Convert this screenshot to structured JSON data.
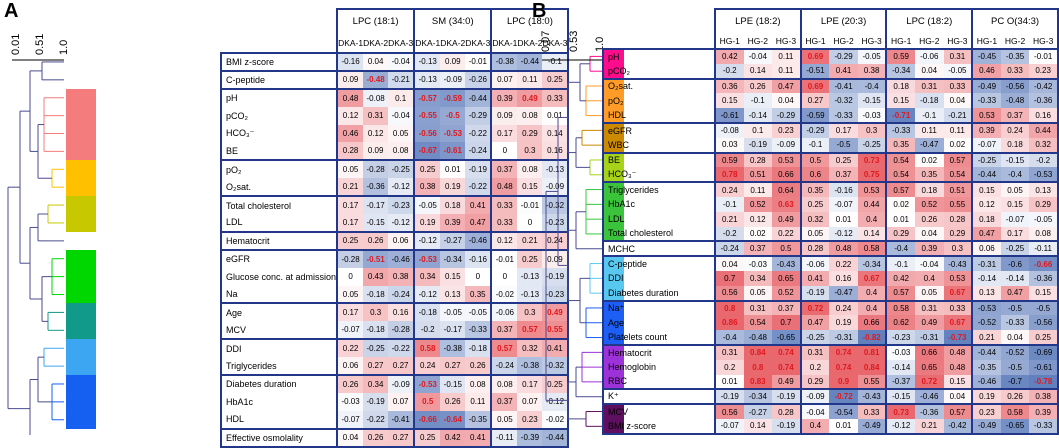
{
  "panelA": {
    "letter": "A",
    "scale_ticks": [
      "0.01",
      "0.51",
      "1.0"
    ],
    "columns": [
      "LPC (18:1)",
      "SM (34:0)",
      "LPC (18:0)"
    ],
    "subcolumns": [
      "DKA-1",
      "DKA-2",
      "DKA-3",
      "DKA-1",
      "DKA-2",
      "DKA-3",
      "DKA-1",
      "DKA-2",
      "DKA-3"
    ],
    "groups": [
      {
        "color": "#ffffff",
        "rows": [
          {
            "name": "BMI z-score",
            "values": [
              -0.16,
              0.04,
              -0.04,
              -0.13,
              0.09,
              -0.01,
              -0.38,
              -0.44,
              -0.1
            ]
          }
        ]
      },
      {
        "color": "#ffffff",
        "rows": [
          {
            "name": "C-peptide",
            "values": [
              0.09,
              -0.48,
              -0.21,
              -0.13,
              -0.09,
              -0.26,
              0.07,
              0.11,
              0.25
            ]
          }
        ]
      },
      {
        "color": "#f47c7c",
        "rows": [
          {
            "name": "pH",
            "values": [
              0.48,
              -0.08,
              0.1,
              -0.57,
              -0.59,
              -0.44,
              0.39,
              0.49,
              0.33
            ]
          },
          {
            "name": "pCO₂",
            "values": [
              0.12,
              0.31,
              -0.04,
              -0.55,
              -0.5,
              -0.29,
              0.09,
              0.08,
              0.01
            ]
          },
          {
            "name": "HCO₃⁻",
            "values": [
              0.46,
              0.12,
              0.05,
              -0.56,
              -0.53,
              -0.22,
              0.17,
              0.29,
              0.14
            ]
          },
          {
            "name": "BE",
            "values": [
              0.28,
              0.09,
              0.08,
              -0.67,
              -0.61,
              -0.24,
              0,
              0.3,
              0.16
            ]
          }
        ]
      },
      {
        "color": "#ffc000",
        "rows": [
          {
            "name": "pO₂",
            "values": [
              0.05,
              -0.28,
              -0.25,
              0.25,
              0.01,
              -0.19,
              0.37,
              0.08,
              -0.13
            ]
          },
          {
            "name": "O₂sat.",
            "values": [
              0.21,
              -0.36,
              -0.12,
              0.38,
              0.19,
              -0.22,
              0.48,
              0.15,
              -0.09
            ]
          }
        ]
      },
      {
        "color": "#c8c800",
        "rows": [
          {
            "name": "Total cholesterol",
            "values": [
              0.17,
              -0.17,
              -0.23,
              -0.05,
              0.18,
              0.41,
              0.33,
              -0.01,
              -0.32
            ]
          },
          {
            "name": "LDL",
            "values": [
              0.17,
              -0.15,
              -0.12,
              0.19,
              0.39,
              0.47,
              0.33,
              0,
              -0.23
            ]
          }
        ]
      },
      {
        "color": "#ffffff",
        "rows": [
          {
            "name": "Hematocrit",
            "values": [
              0.25,
              0.26,
              0.06,
              -0.12,
              -0.27,
              -0.46,
              0.12,
              0.21,
              0.24
            ]
          }
        ]
      },
      {
        "color": "#00d700",
        "rows": [
          {
            "name": "eGFR",
            "values": [
              -0.28,
              -0.51,
              -0.46,
              -0.53,
              -0.34,
              -0.16,
              -0.01,
              0.25,
              0.09
            ]
          },
          {
            "name": "Glucose conc. at admission",
            "values": [
              0,
              0.43,
              0.38,
              0.34,
              0.15,
              0,
              0,
              -0.13,
              -0.19
            ]
          },
          {
            "name": "Na",
            "values": [
              0.05,
              -0.18,
              -0.24,
              -0.12,
              0.13,
              0.35,
              -0.02,
              -0.13,
              -0.23
            ]
          }
        ]
      },
      {
        "color": "#119a8a",
        "rows": [
          {
            "name": "Age",
            "values": [
              0.17,
              0.3,
              0.16,
              -0.18,
              -0.05,
              -0.05,
              -0.06,
              0.3,
              0.49
            ]
          },
          {
            "name": "MCV",
            "values": [
              -0.07,
              -0.18,
              -0.28,
              -0.2,
              -0.17,
              -0.33,
              0.37,
              0.57,
              0.55
            ]
          }
        ]
      },
      {
        "color": "#3da6f2",
        "rows": [
          {
            "name": "DDI",
            "values": [
              0.22,
              -0.25,
              -0.22,
              0.58,
              -0.38,
              -0.18,
              0.57,
              0.32,
              0.41
            ]
          },
          {
            "name": "Triglycerides",
            "values": [
              0.06,
              0.27,
              0.27,
              0.24,
              0.27,
              0.26,
              -0.24,
              -0.38,
              -0.32
            ]
          }
        ]
      },
      {
        "color": "#1560f0",
        "rows": [
          {
            "name": "Diabetes duration",
            "values": [
              0.26,
              0.34,
              -0.09,
              -0.53,
              -0.15,
              0.08,
              0.08,
              0.17,
              0.25
            ]
          },
          {
            "name": "HbA1c",
            "values": [
              -0.03,
              -0.19,
              0.07,
              0.5,
              0.26,
              0.11,
              0.37,
              0.07,
              -0.12
            ]
          },
          {
            "name": "HDL",
            "values": [
              -0.07,
              -0.22,
              -0.41,
              -0.66,
              -0.64,
              -0.35,
              0.05,
              0.23,
              -0.02
            ]
          }
        ]
      },
      {
        "color": "#ffffff",
        "rows": [
          {
            "name": "Effective osmolality",
            "values": [
              0.04,
              0.26,
              0.27,
              0.25,
              0.42,
              0.41,
              -0.11,
              -0.39,
              -0.44
            ]
          }
        ]
      }
    ],
    "highlight": [
      "-0.48",
      "-0.57",
      "-0.59",
      "-0.55",
      "-0.5",
      "-0.56",
      "-0.53",
      "-0.67",
      "-0.61",
      "0.49",
      "-0.51",
      "0.49",
      "0.57",
      "0.55",
      "0.58",
      "0.57",
      "-0.53",
      "0.5",
      "-0.66",
      "-0.64"
    ]
  },
  "panelB": {
    "letter": "B",
    "scale_ticks": [
      "0.07",
      "0.53",
      "1.0"
    ],
    "columns": [
      "LPE (18:2)",
      "LPE (20:3)",
      "LPC (18:2)",
      "PC O(34:3)"
    ],
    "subcolumns": [
      "HG-1",
      "HG-2",
      "HG-3",
      "HG-1",
      "HG-2",
      "HG-3",
      "HG-1",
      "HG-2",
      "HG-3",
      "HG-1",
      "HG-2",
      "HG-3"
    ],
    "groups": [
      {
        "color": "#ff0c8c",
        "rows": [
          {
            "name": "pH",
            "values": [
              0.42,
              -0.04,
              0.11,
              0.69,
              -0.29,
              -0.05,
              0.59,
              -0.06,
              0.31,
              -0.45,
              -0.35,
              -0.01
            ]
          },
          {
            "name": "pCO₂",
            "values": [
              -0.2,
              0.14,
              0.11,
              -0.51,
              0.41,
              0.38,
              -0.34,
              0.04,
              -0.05,
              0.46,
              0.33,
              0.23
            ]
          }
        ]
      },
      {
        "color": "#ff9c28",
        "rows": [
          {
            "name": "O₂sat.",
            "values": [
              0.36,
              0.26,
              0.47,
              0.69,
              -0.41,
              -0.4,
              0.18,
              0.31,
              0.33,
              -0.49,
              -0.56,
              -0.42
            ]
          },
          {
            "name": "pO₂",
            "values": [
              0.15,
              -0.1,
              0.04,
              0.27,
              -0.32,
              -0.15,
              0.15,
              -0.18,
              0.04,
              -0.33,
              -0.48,
              -0.36
            ]
          },
          {
            "name": "HDL",
            "values": [
              -0.61,
              -0.14,
              -0.29,
              -0.59,
              -0.33,
              -0.03,
              -0.71,
              -0.1,
              -0.21,
              0.53,
              0.37,
              0.16
            ]
          }
        ]
      },
      {
        "color": "#cc8a00",
        "rows": [
          {
            "name": "eGFR",
            "values": [
              -0.08,
              0.1,
              0.23,
              -0.29,
              0.17,
              0.3,
              -0.33,
              0.11,
              0.11,
              0.39,
              0.24,
              0.44
            ]
          },
          {
            "name": "WBC",
            "values": [
              0.03,
              -0.19,
              -0.09,
              -0.1,
              -0.5,
              -0.25,
              0.35,
              -0.47,
              0.02,
              -0.07,
              0.18,
              0.32
            ]
          }
        ]
      },
      {
        "color": "#a6d21a",
        "rows": [
          {
            "name": "BE",
            "values": [
              0.59,
              0.28,
              0.53,
              0.5,
              0.25,
              0.73,
              0.54,
              0.02,
              0.57,
              -0.25,
              -0.15,
              -0.2
            ]
          },
          {
            "name": "HCO₃⁻",
            "values": [
              0.78,
              0.51,
              0.66,
              0.6,
              0.37,
              0.75,
              0.54,
              0.35,
              0.54,
              -0.44,
              -0.4,
              -0.53
            ]
          }
        ]
      },
      {
        "color": "#3bc43b",
        "rows": [
          {
            "name": "Triglycerides",
            "values": [
              0.24,
              0.11,
              0.64,
              0.35,
              -0.16,
              0.53,
              0.57,
              0.18,
              0.51,
              0.15,
              0.05,
              0.13
            ]
          },
          {
            "name": "HbA1c",
            "values": [
              -0.1,
              0.52,
              0.63,
              0.25,
              -0.07,
              0.44,
              0.02,
              0.52,
              0.55,
              0.12,
              0.15,
              0.29
            ]
          },
          {
            "name": "LDL",
            "values": [
              0.21,
              0.12,
              0.49,
              0.32,
              0.01,
              0.4,
              0.01,
              0.26,
              0.28,
              0.18,
              -0.07,
              -0.05
            ]
          },
          {
            "name": "Total cholesterol",
            "values": [
              -0.2,
              0.02,
              0.22,
              0.05,
              -0.12,
              0.14,
              0.29,
              0.04,
              0.29,
              0.47,
              0.17,
              0.08
            ]
          }
        ]
      },
      {
        "color": "#ffffff",
        "rows": [
          {
            "name": "MCHC",
            "values": [
              -0.24,
              0.37,
              0.5,
              0.28,
              0.48,
              0.58,
              -0.4,
              0.39,
              0.3,
              0.06,
              -0.25,
              -0.11
            ]
          }
        ]
      },
      {
        "color": "#59c8f0",
        "rows": [
          {
            "name": "C-peptide",
            "values": [
              0.04,
              -0.03,
              -0.43,
              -0.06,
              0.22,
              -0.34,
              -0.1,
              -0.04,
              -0.43,
              -0.31,
              -0.6,
              -0.66
            ]
          },
          {
            "name": "DDI",
            "values": [
              0.7,
              0.34,
              0.65,
              0.41,
              0.16,
              0.67,
              0.42,
              0.4,
              0.53,
              -0.14,
              -0.14,
              -0.36
            ]
          },
          {
            "name": "Diabetes duration",
            "values": [
              0.56,
              0.05,
              0.52,
              -0.19,
              -0.47,
              0.4,
              0.57,
              0.05,
              0.67,
              0.13,
              0.47,
              0.15
            ]
          }
        ]
      },
      {
        "color": "#1d5ef5",
        "rows": [
          {
            "name": "Na⁺",
            "values": [
              0.8,
              0.31,
              0.37,
              0.72,
              0.24,
              0.4,
              0.58,
              0.31,
              0.33,
              -0.53,
              -0.5,
              -0.5
            ]
          },
          {
            "name": "Age",
            "values": [
              0.86,
              0.54,
              0.7,
              0.47,
              0.19,
              0.66,
              0.62,
              0.49,
              0.67,
              -0.52,
              -0.33,
              -0.56
            ]
          },
          {
            "name": "Platelets count",
            "values": [
              -0.4,
              -0.48,
              -0.65,
              -0.25,
              -0.31,
              -0.82,
              -0.23,
              -0.31,
              -0.73,
              0.21,
              0.04,
              0.25
            ]
          }
        ]
      },
      {
        "color": "#9d32d8",
        "rows": [
          {
            "name": "Hematocrit",
            "values": [
              0.31,
              0.84,
              0.74,
              0.31,
              0.74,
              0.81,
              -0.03,
              0.66,
              0.48,
              -0.44,
              -0.52,
              -0.69
            ]
          },
          {
            "name": "Hemoglobin",
            "values": [
              0.2,
              0.8,
              0.74,
              0.2,
              0.74,
              0.84,
              -0.14,
              0.65,
              0.48,
              -0.35,
              -0.5,
              -0.61
            ]
          },
          {
            "name": "RBC",
            "values": [
              0.01,
              0.83,
              0.49,
              0.29,
              0.9,
              0.55,
              -0.37,
              0.72,
              0.15,
              -0.46,
              -0.7,
              -0.78
            ]
          }
        ]
      },
      {
        "color": "#ffffff",
        "rows": [
          {
            "name": "K⁺",
            "values": [
              -0.19,
              -0.34,
              -0.19,
              -0.09,
              -0.72,
              -0.43,
              -0.15,
              -0.46,
              0.04,
              0.19,
              0.26,
              0.38
            ]
          }
        ]
      },
      {
        "color": "#5e0f60",
        "rows": [
          {
            "name": "MCV",
            "values": [
              0.56,
              -0.27,
              0.28,
              -0.04,
              -0.54,
              0.33,
              0.73,
              -0.36,
              0.57,
              0.23,
              0.58,
              0.39
            ]
          },
          {
            "name": "BMI z-score",
            "values": [
              -0.07,
              0.14,
              -0.19,
              0.4,
              0.01,
              -0.49,
              -0.12,
              0.21,
              -0.42,
              -0.49,
              -0.65,
              -0.33
            ]
          }
        ]
      }
    ],
    "highlight": [
      "0.69",
      "0.73",
      "0.78",
      "0.75",
      "0.63",
      "0.67",
      "0.8",
      "0.72",
      "0.86",
      "0.84",
      "0.74",
      "0.81",
      "0.9",
      "0.83",
      "-0.66",
      "-0.71",
      "-0.82",
      "-0.73",
      "-0.78",
      "0.73",
      "-0.72"
    ]
  }
}
